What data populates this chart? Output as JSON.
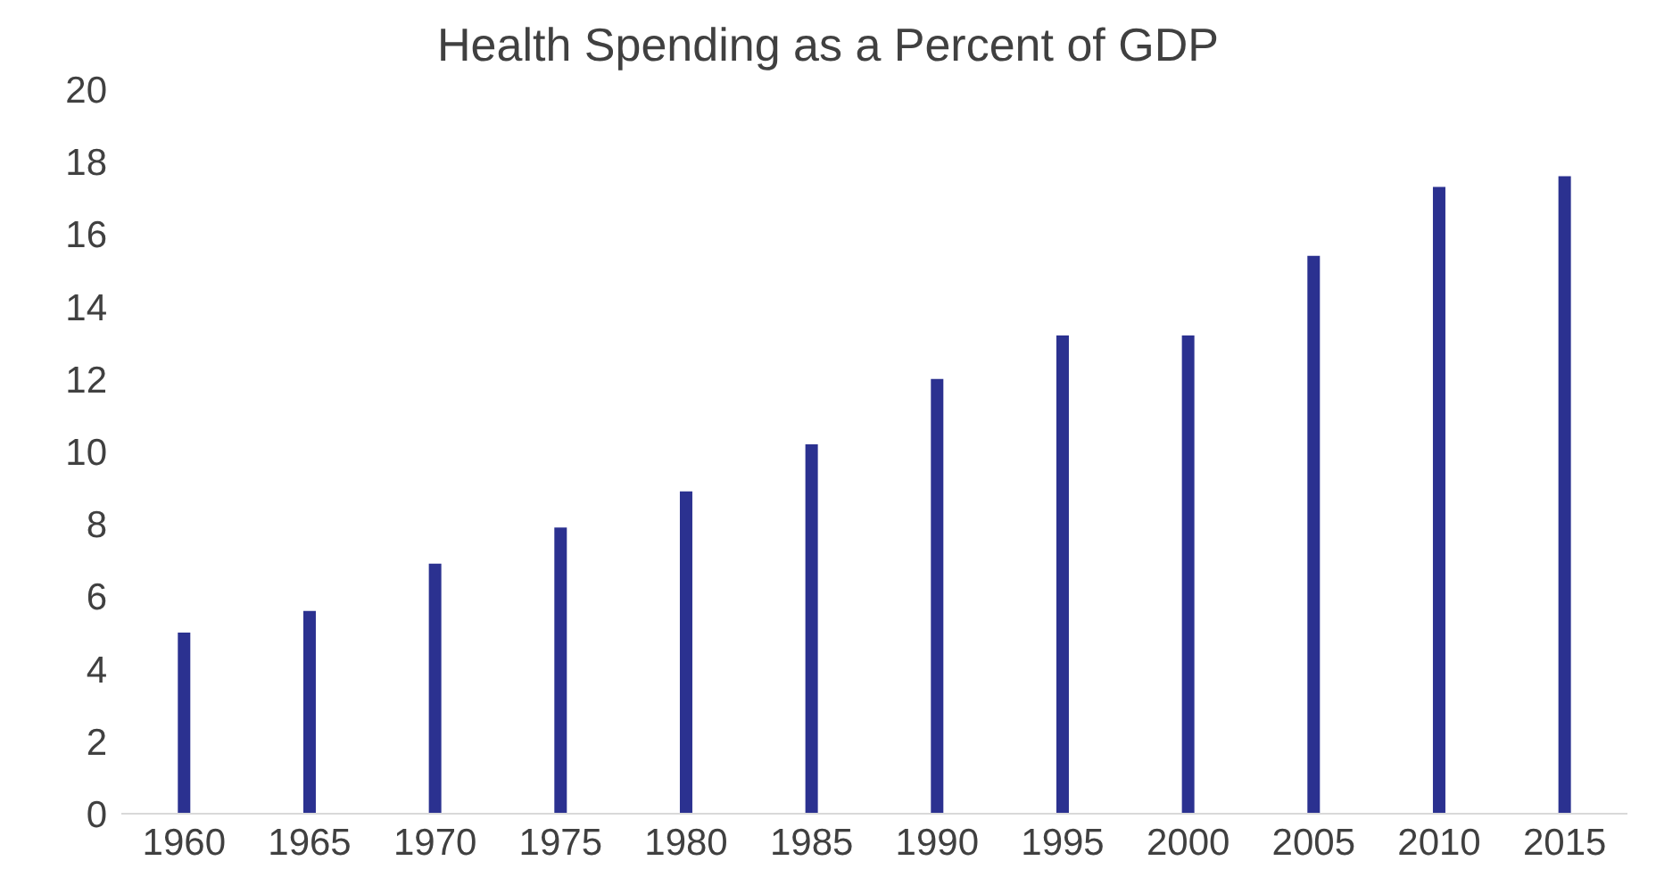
{
  "chart_data": {
    "type": "bar",
    "title": "Health Spending as a Percent of GDP",
    "categories": [
      "1960",
      "1965",
      "1970",
      "1975",
      "1980",
      "1985",
      "1990",
      "1995",
      "2000",
      "2005",
      "2010",
      "2015"
    ],
    "values": [
      5.0,
      5.6,
      6.9,
      7.9,
      8.9,
      10.2,
      12.0,
      13.2,
      13.2,
      15.4,
      17.3,
      17.6
    ],
    "color": "#2b3190",
    "ylim": [
      0,
      20
    ],
    "yticks": [
      0,
      2,
      4,
      6,
      8,
      10,
      12,
      14,
      16,
      18,
      20
    ],
    "grid": false,
    "legend": false
  }
}
